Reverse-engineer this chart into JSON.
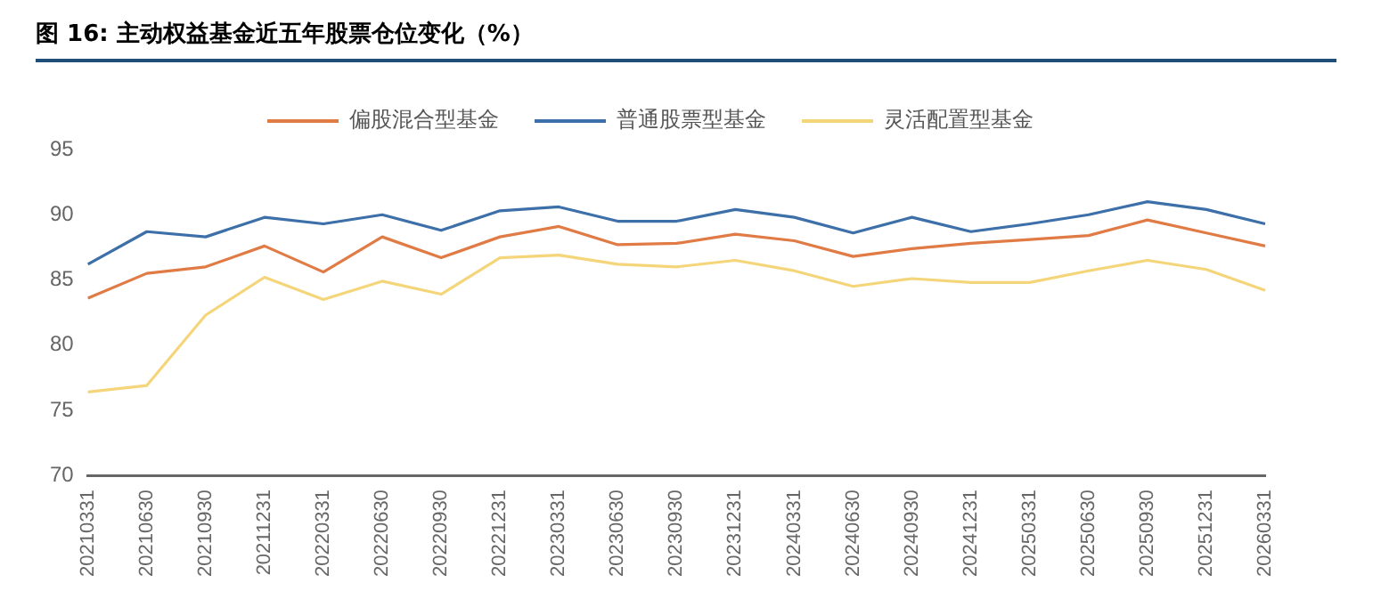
{
  "chart_data": {
    "type": "line",
    "title": "图 16:  主动权益基金近五年股票仓位变化（%）",
    "categories": [
      "20210331",
      "20210630",
      "20210930",
      "20211231",
      "20220331",
      "20220630",
      "20220930",
      "20221231",
      "20230331",
      "20230630",
      "20230930",
      "20231231",
      "20240331",
      "20240630",
      "20240930",
      "20241231",
      "20250331",
      "20250630",
      "20250930",
      "20251231",
      "20260331"
    ],
    "series": [
      {
        "name": "偏股混合型基金",
        "color": "#e07b45",
        "values": [
          83.6,
          85.5,
          86.0,
          87.6,
          85.6,
          88.3,
          86.7,
          88.3,
          89.1,
          87.7,
          87.8,
          88.5,
          88.0,
          86.8,
          87.4,
          87.8,
          88.1,
          88.4,
          89.6,
          88.6,
          87.6
        ]
      },
      {
        "name": "普通股票型基金",
        "color": "#3d6fa8",
        "values": [
          86.2,
          88.7,
          88.3,
          89.8,
          89.3,
          90.0,
          88.8,
          90.3,
          90.6,
          89.5,
          89.5,
          90.4,
          89.8,
          88.6,
          89.8,
          88.7,
          89.3,
          90.0,
          91.0,
          90.4,
          89.3
        ]
      },
      {
        "name": "灵活配置型基金",
        "color": "#f5d57a",
        "values": [
          76.4,
          76.9,
          82.3,
          85.2,
          83.5,
          84.9,
          83.9,
          86.7,
          86.9,
          86.2,
          86.0,
          86.5,
          85.7,
          84.5,
          85.1,
          84.8,
          84.8,
          85.7,
          86.5,
          85.8,
          84.2
        ]
      }
    ],
    "ylim": [
      70,
      95
    ],
    "yticks": [
      70,
      75,
      80,
      85,
      90,
      95
    ],
    "grid": false,
    "legend": "top",
    "marker": "none",
    "line_style": "solid"
  }
}
